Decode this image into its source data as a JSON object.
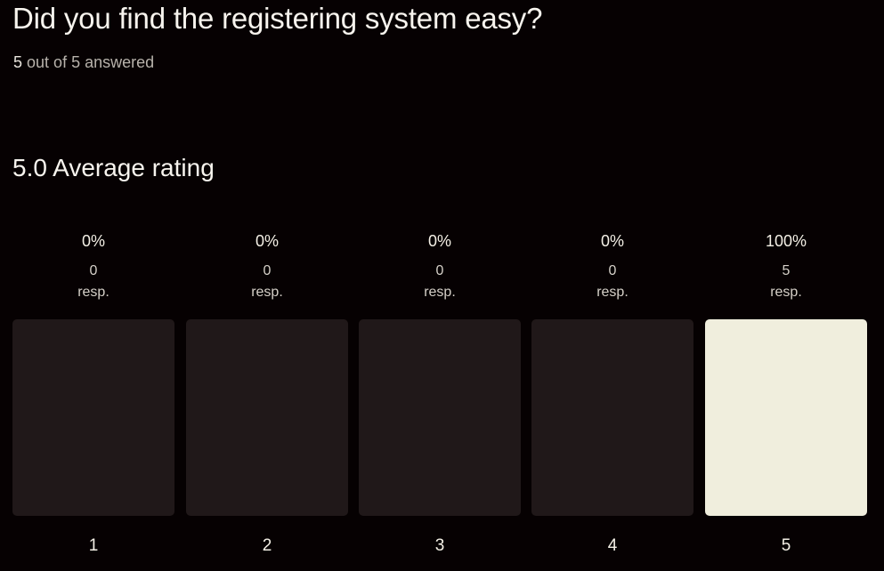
{
  "question": {
    "title": "Did you find the registering system easy?",
    "answered_count": "5",
    "answered_suffix": "out of 5 answered"
  },
  "summary": {
    "average_text": "5.0 Average rating",
    "average_value": 5.0
  },
  "colors": {
    "background": "#060102",
    "bar_empty": "#201819",
    "bar_filled": "#f0eedd"
  },
  "chart_data": {
    "type": "bar",
    "categories": [
      "1",
      "2",
      "3",
      "4",
      "5"
    ],
    "percent_labels": [
      "0%",
      "0%",
      "0%",
      "0%",
      "100%"
    ],
    "responses": [
      "0",
      "0",
      "0",
      "0",
      "5"
    ],
    "resp_label": "resp.",
    "values": [
      0,
      0,
      0,
      0,
      100
    ]
  }
}
